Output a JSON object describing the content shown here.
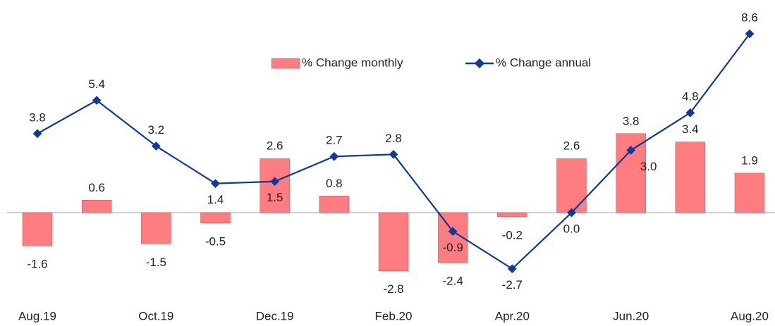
{
  "chart_data": {
    "type": "bar-line",
    "categories": [
      "Aug.19",
      null,
      "Oct.19",
      null,
      "Dec.19",
      null,
      "Feb.20",
      null,
      "Apr.20",
      null,
      "Jun.20",
      null,
      "Aug.20"
    ],
    "series": [
      {
        "name": "% Change monthly",
        "type": "bar",
        "color": "#ff7c80",
        "values": [
          -1.6,
          0.6,
          -1.5,
          -0.5,
          2.6,
          0.8,
          -2.8,
          -2.4,
          -0.2,
          2.6,
          3.8,
          3.4,
          1.9
        ],
        "value_labels": [
          "-1.6",
          "0.6",
          "-1.5",
          "-0.5",
          "2.6",
          "0.8",
          "-2.8",
          "-2.4",
          "-0.2",
          "2.6",
          "3.8",
          "3.4",
          "1.9"
        ]
      },
      {
        "name": "% Change annual",
        "type": "line",
        "color": "#0e3a9a",
        "values": [
          3.8,
          5.4,
          3.2,
          1.4,
          1.5,
          2.7,
          2.8,
          -0.9,
          -2.7,
          0.0,
          3.0,
          4.8,
          8.6
        ],
        "value_labels": [
          "3.8",
          "5.4",
          "3.2",
          "1.4",
          "1.5",
          "2.7",
          "2.8",
          "-0.9",
          "-2.7",
          "0.0",
          "3.0",
          "4.8",
          "8.6"
        ]
      }
    ],
    "legend": "top"
  }
}
